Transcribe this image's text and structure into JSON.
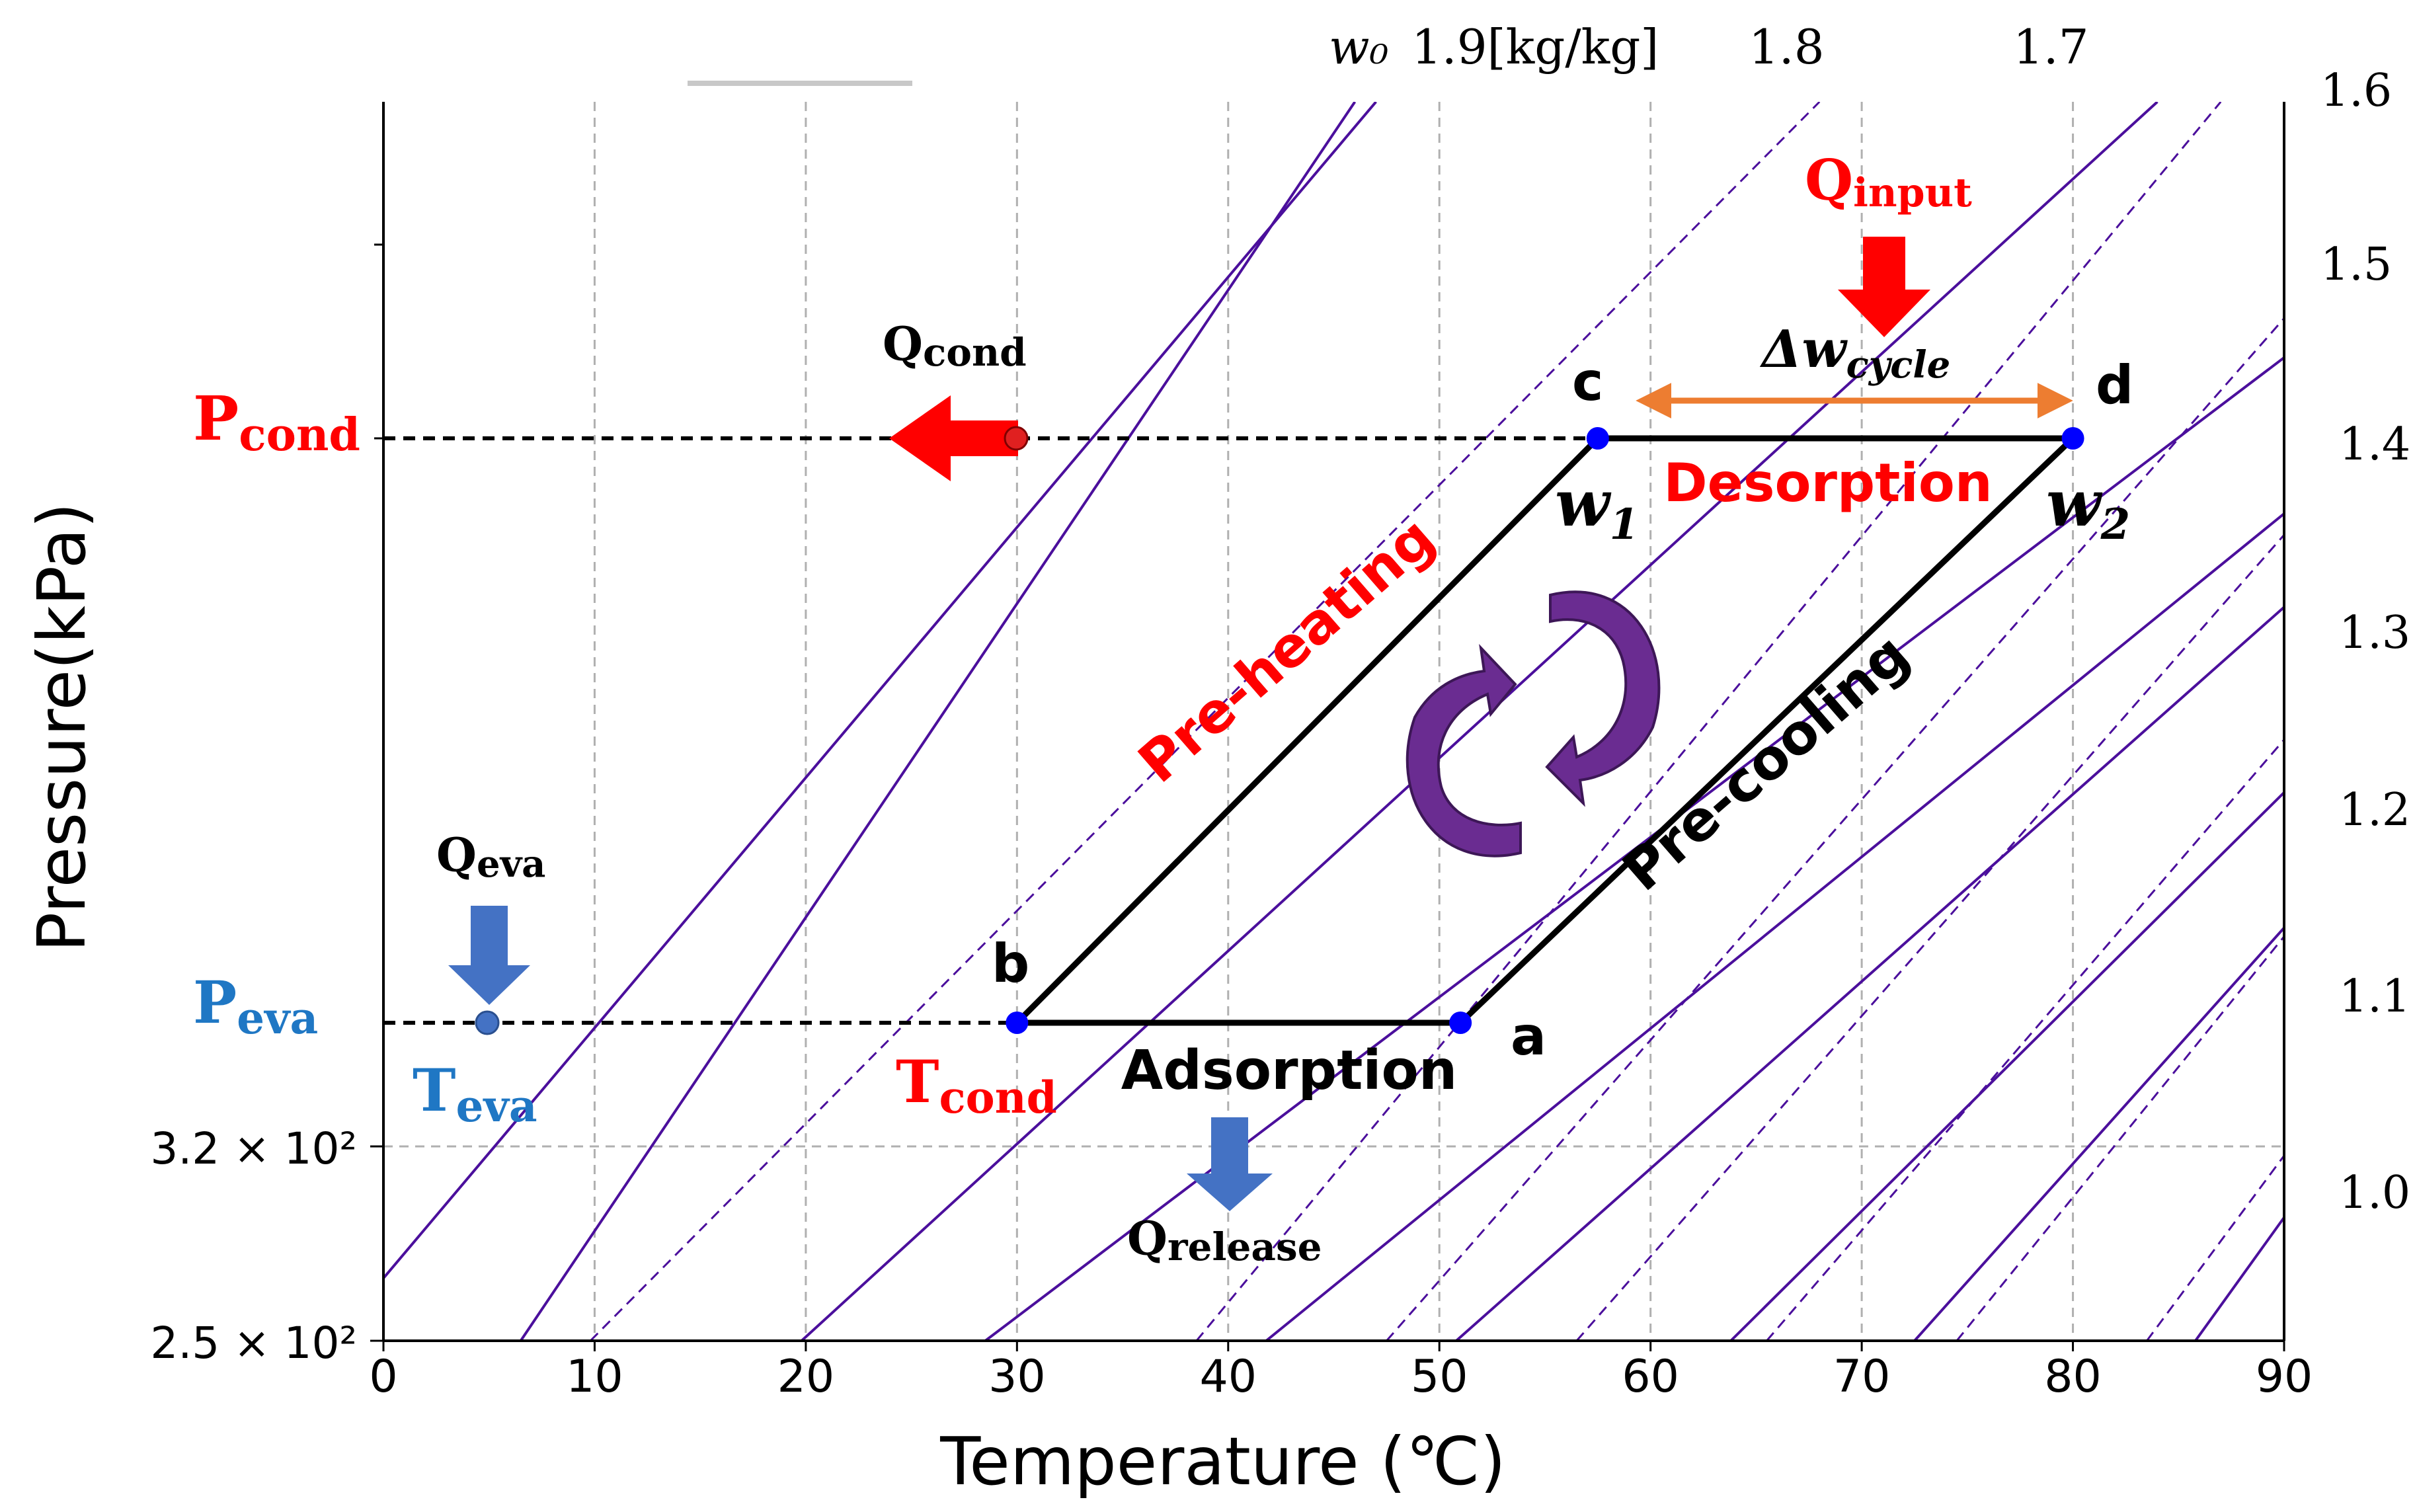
{
  "chart_data": {
    "type": "line",
    "xlabel": "Temperature (℃)",
    "ylabel": "Pressure(kPa)",
    "xlim": [
      0,
      90
    ],
    "x_ticks": [
      "0",
      "10",
      "20",
      "30",
      "40",
      "50",
      "60",
      "70",
      "80",
      "90"
    ],
    "y_ticks_left": [
      "3.2 × 10²",
      "2.5 × 10²"
    ],
    "y_ticks_right": [
      "1.6",
      "1.5",
      "1.4",
      "1.3",
      "1.2",
      "1.1",
      "1.0"
    ],
    "top_labels": {
      "w0": "w₀",
      "w_first": "1.9[kg/kg]",
      "w_second": "1.8",
      "w_third": "1.7"
    },
    "grid": true,
    "isosteres": {
      "solid_x_at_bottom": [
        -2.5,
        6.5,
        19.8,
        28.5,
        41.8,
        50.8,
        63.8,
        72.5,
        85.8
      ],
      "solid_x_at_top": [
        47,
        46,
        84,
        106,
        114,
        117,
        123,
        125,
        128
      ],
      "dashed_x_at_bottom": [
        9.8,
        38.5,
        47.5,
        56.5,
        65.5,
        74.5,
        83.5
      ],
      "dashed_x_at_top": [
        68,
        87,
        99,
        108,
        116,
        122,
        127
      ]
    },
    "cycle": {
      "points": [
        {
          "label": "a",
          "T": 51,
          "level": "eva"
        },
        {
          "label": "b",
          "T": 30,
          "level": "eva"
        },
        {
          "label": "c",
          "T": 57.5,
          "level": "cond"
        },
        {
          "label": "d",
          "T": 80,
          "level": "cond"
        }
      ],
      "marker_color": "#0000ff"
    },
    "annotations": {
      "p_cond": "P",
      "p_cond_sub": "cond",
      "p_eva": "P",
      "p_eva_sub": "eva",
      "t_eva": "T",
      "t_eva_sub": "eva",
      "t_cond": "T",
      "t_cond_sub": "cond",
      "q_cond": "Q",
      "q_cond_sub": "cond",
      "q_eva": "Q",
      "q_eva_sub": "eva",
      "q_input": "Q",
      "q_input_sub": "input",
      "q_release": "Q",
      "q_release_sub": "release",
      "delta_w": "Δw",
      "delta_w_sub": "cycle",
      "w1": "w",
      "w1_sub": "1",
      "w2": "w",
      "w2_sub": "2",
      "desorption": "Desorption",
      "adsorption": "Adsorption",
      "pre_heating": "Pre-heating",
      "pre_cooling": "Pre-cooling"
    },
    "colors": {
      "isostere": "#4b0f9c",
      "cycle": "#000000",
      "red_label": "#ff0000",
      "blue_label": "#1f77c4",
      "blue_arrow": "#4472c4",
      "orange_arrow": "#ed7d31",
      "purple_arrow": "#6a2c91",
      "grid": "#b0b0b0"
    }
  }
}
